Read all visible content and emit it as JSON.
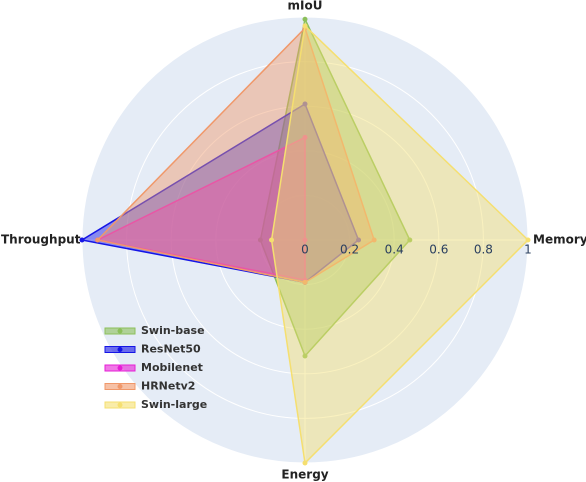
{
  "chart_data": {
    "type": "radar",
    "categories": [
      "mIoU",
      "Memory",
      "Energy",
      "Throughput"
    ],
    "rlim": [
      0,
      1
    ],
    "rticks": [
      0,
      0.2,
      0.4,
      0.6,
      0.8,
      1
    ],
    "grid": true,
    "legend": "lower left",
    "series": [
      {
        "name": "Swin-base",
        "color": "#8cbf5a",
        "values": [
          0.99,
          0.47,
          0.52,
          0.2
        ]
      },
      {
        "name": "ResNet50",
        "color": "#1515e6",
        "values": [
          0.61,
          0.24,
          0.19,
          1.0
        ]
      },
      {
        "name": "Mobilenet",
        "color": "#e61ed6",
        "values": [
          0.46,
          0.0,
          0.18,
          0.93
        ]
      },
      {
        "name": "HRNetv2",
        "color": "#f0986a",
        "values": [
          0.95,
          0.31,
          0.19,
          0.93
        ]
      },
      {
        "name": "Swin-large",
        "color": "#f5df70",
        "values": [
          0.96,
          1.0,
          1.0,
          0.15
        ]
      }
    ]
  }
}
